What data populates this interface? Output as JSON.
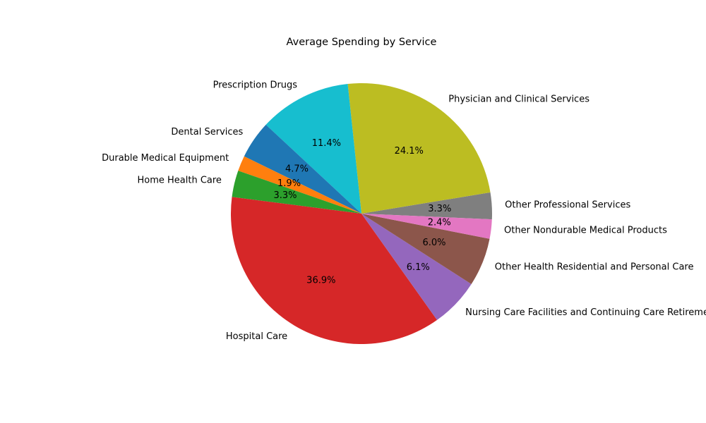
{
  "chart_data": {
    "type": "pie",
    "title": "Average Spending by Service",
    "start_angle_deg": -2.5,
    "direction": "counterclockwise",
    "categories": [
      "Other Professional Services",
      "Physician and Clinical Services",
      "Prescription Drugs",
      "Dental Services",
      "Durable Medical Equipment",
      "Home Health Care",
      "Hospital Care",
      "Nursing Care Facilities and Continuing Care Retirement Communities",
      "Other Health Residential and Personal Care",
      "Other Nondurable Medical Products"
    ],
    "values": [
      3.3,
      24.1,
      11.4,
      4.7,
      1.9,
      3.3,
      36.9,
      6.1,
      6.0,
      2.4
    ],
    "percent_labels": [
      "3.3%",
      "24.1%",
      "11.4%",
      "4.7%",
      "1.9%",
      "3.3%",
      "36.9%",
      "6.1%",
      "6.0%",
      "2.4%"
    ],
    "colors": [
      "#7f7f7f",
      "#bcbd22",
      "#17becf",
      "#1f77b4",
      "#ff7f0e",
      "#2ca02c",
      "#d62728",
      "#9467bd",
      "#8c564b",
      "#e377c2"
    ],
    "legend": "none"
  }
}
